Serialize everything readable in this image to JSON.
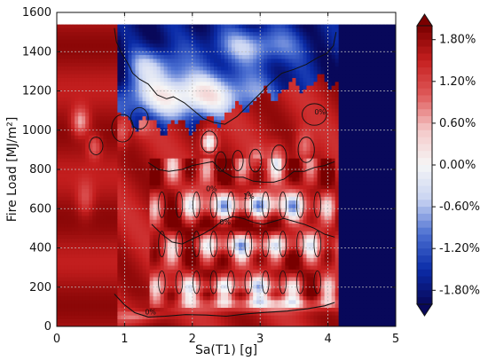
{
  "chart_data": {
    "type": "heatmap",
    "xlabel": "Sa(T1) [g]",
    "ylabel": "Fire Load [MJ/m²]",
    "xlim": [
      0,
      5
    ],
    "ylim": [
      0,
      1600
    ],
    "x_ticks": [
      0,
      1,
      2,
      3,
      4,
      5
    ],
    "y_ticks": [
      0,
      200,
      400,
      600,
      800,
      1000,
      1200,
      1400,
      1600
    ],
    "x_tick_labels": [
      "0",
      "1",
      "2",
      "3",
      "4",
      "5"
    ],
    "y_tick_labels": [
      "0",
      "200",
      "400",
      "600",
      "800",
      "1000",
      "1200",
      "1400",
      "1600"
    ],
    "grid": true,
    "colorbar": {
      "min": -0.02,
      "max": 0.02,
      "extend": "both",
      "colormap": [
        "#08085a",
        "#0b2ca8",
        "#4b6fd1",
        "#c8d3f2",
        "#f6f6f6",
        "#f4c8c8",
        "#df5a5a",
        "#c51f1f",
        "#7a0000"
      ],
      "ticks": [
        0.018,
        0.012,
        0.006,
        0.0,
        -0.006,
        -0.012,
        -0.018
      ],
      "tick_labels": [
        "1.80%",
        "1.20%",
        "0.60%",
        "0.00%",
        "-0.60%",
        "-1.20%",
        "-1.80%"
      ]
    },
    "contour_labels": [
      {
        "label": "0%",
        "x": 3.8,
        "y": 1080
      },
      {
        "label": "0%",
        "x": 2.2,
        "y": 690
      },
      {
        "label": "0%",
        "x": 2.4,
        "y": 520
      },
      {
        "label": "1%",
        "x": 2.75,
        "y": 650
      },
      {
        "label": "0%",
        "x": 1.3,
        "y": 60
      }
    ],
    "approximate_regions": [
      {
        "name": "left-red-band",
        "x": [
          0,
          0.9
        ],
        "y": [
          0,
          1550
        ],
        "value": 0.018
      },
      {
        "name": "upper-blue-diagonal",
        "x": [
          0.8,
          4.15
        ],
        "y": [
          1100,
          1550
        ],
        "value": -0.016
      },
      {
        "name": "right-blue-band",
        "x": [
          4.2,
          5
        ],
        "y": [
          0,
          1550
        ],
        "value": -0.02
      },
      {
        "name": "central-red",
        "x": [
          1.0,
          4.1
        ],
        "y": [
          100,
          1100
        ],
        "value": 0.014
      },
      {
        "name": "oscillating-white-blue",
        "x": [
          1.3,
          4.1
        ],
        "y": [
          100,
          850
        ],
        "value": -0.004
      }
    ]
  }
}
